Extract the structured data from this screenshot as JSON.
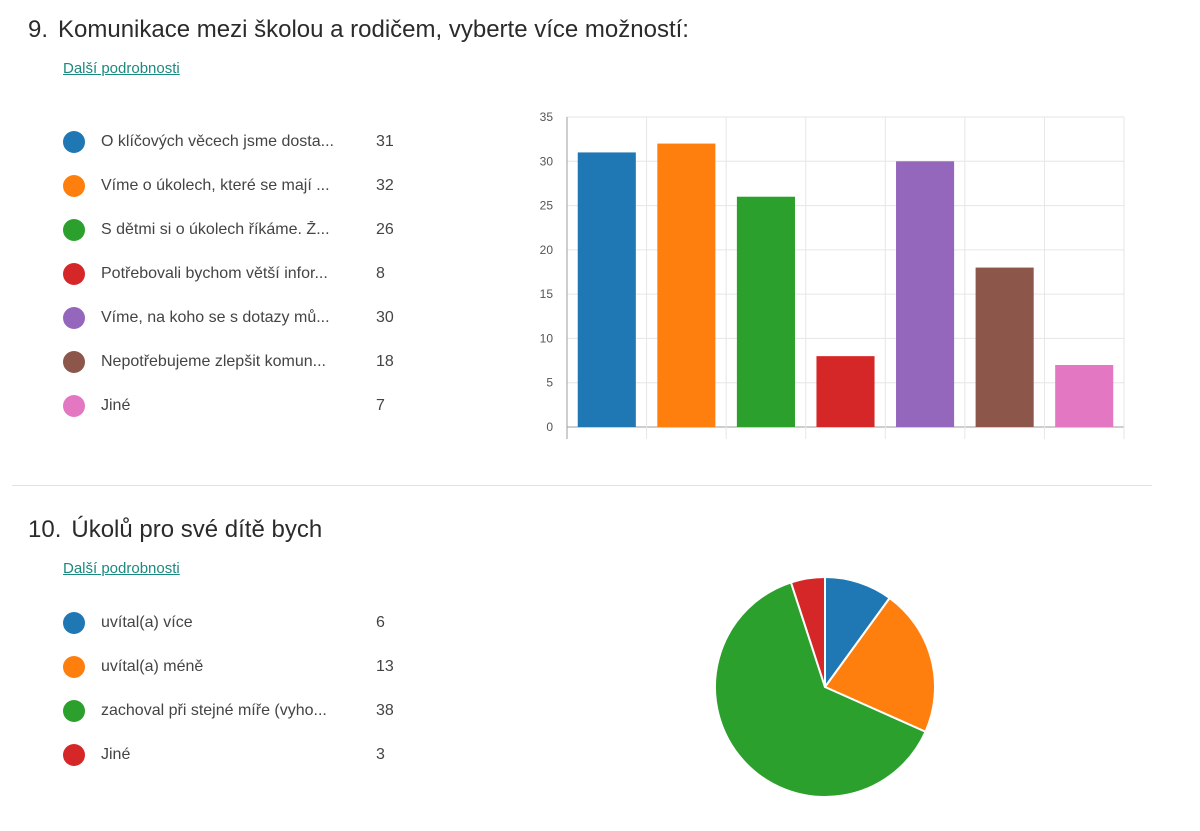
{
  "q9": {
    "number": "9.",
    "title": "Komunikace mezi školou a rodičem, vyberte více možností:",
    "details_link": "Další podrobnosti",
    "legend": [
      {
        "label": "O klíčových věcech jsme dosta...",
        "count": "31",
        "color": "#1f77b4"
      },
      {
        "label": "Víme o úkolech, které se mají ...",
        "count": "32",
        "color": "#ff7f0e"
      },
      {
        "label": "S dětmi si o úkolech říkáme. Ž...",
        "count": "26",
        "color": "#2ca02c"
      },
      {
        "label": "Potřebovali bychom větší infor...",
        "count": "8",
        "color": "#d62728"
      },
      {
        "label": "Víme, na koho se s dotazy mů...",
        "count": "30",
        "color": "#9467bd"
      },
      {
        "label": "Nepotřebujeme zlepšit komun...",
        "count": "18",
        "color": "#8c564b"
      },
      {
        "label": "Jiné",
        "count": "7",
        "color": "#e377c2"
      }
    ]
  },
  "q10": {
    "number": "10.",
    "title": "Úkolů pro své dítě bych",
    "details_link": "Další podrobnosti",
    "legend": [
      {
        "label": "uvítal(a) více",
        "count": "6",
        "color": "#1f77b4"
      },
      {
        "label": "uvítal(a) méně",
        "count": "13",
        "color": "#ff7f0e"
      },
      {
        "label": "zachoval při stejné míře (vyho...",
        "count": "38",
        "color": "#2ca02c"
      },
      {
        "label": "Jiné",
        "count": "3",
        "color": "#d62728"
      }
    ]
  },
  "chart_data": [
    {
      "type": "bar",
      "values": [
        31,
        32,
        26,
        8,
        30,
        18,
        7
      ],
      "colors": [
        "#1f77b4",
        "#ff7f0e",
        "#2ca02c",
        "#d62728",
        "#9467bd",
        "#8c564b",
        "#e377c2"
      ],
      "ylim": [
        0,
        35
      ],
      "yticks": [
        "0",
        "5",
        "10",
        "15",
        "20",
        "25",
        "30",
        "35"
      ],
      "grid": true
    },
    {
      "type": "pie",
      "values": [
        6,
        13,
        38,
        3
      ],
      "colors": [
        "#1f77b4",
        "#ff7f0e",
        "#2ca02c",
        "#d62728"
      ]
    }
  ]
}
